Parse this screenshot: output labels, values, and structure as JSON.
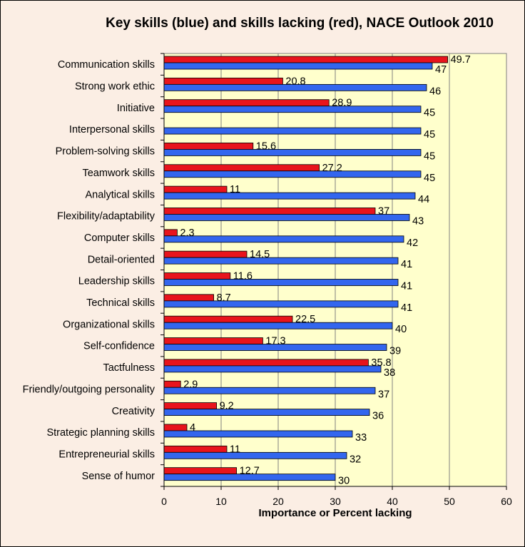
{
  "chart_data": {
    "type": "bar",
    "orientation": "horizontal",
    "title": "Key skills (blue) and skills lacking (red), NACE Outlook 2010",
    "xlabel": "Importance or Percent lacking",
    "ylabel": "",
    "xlim": [
      0,
      60
    ],
    "xticks": [
      0,
      10,
      20,
      30,
      40,
      50,
      60
    ],
    "grid": true,
    "categories": [
      "Communication skills",
      "Strong work ethic",
      "Initiative",
      "Interpersonal skills",
      "Problem-solving skills",
      "Teamwork skills",
      "Analytical skills",
      "Flexibility/adaptability",
      "Computer skills",
      "Detail-oriented",
      "Leadership skills",
      "Technical skills",
      "Organizational skills",
      "Self-confidence",
      "Tactfulness",
      "Friendly/outgoing personality",
      "Creativity",
      "Strategic planning skills",
      "Entrepreneurial skills",
      "Sense of humor"
    ],
    "series": [
      {
        "name": "Skills lacking",
        "color": "#e8141c",
        "values": [
          49.7,
          20.8,
          28.9,
          null,
          15.6,
          27.2,
          11,
          37,
          2.3,
          14.5,
          11.6,
          8.7,
          22.5,
          17.3,
          35.8,
          2.9,
          9.2,
          4,
          11,
          12.7
        ]
      },
      {
        "name": "Key skills",
        "color": "#3366ee",
        "values": [
          47,
          46,
          45,
          45,
          45,
          45,
          44,
          43,
          42,
          41,
          41,
          41,
          40,
          39,
          38,
          37,
          36,
          33,
          32,
          30
        ]
      }
    ],
    "plot_background": "#ffffcc",
    "page_background": "#fbeee4"
  }
}
